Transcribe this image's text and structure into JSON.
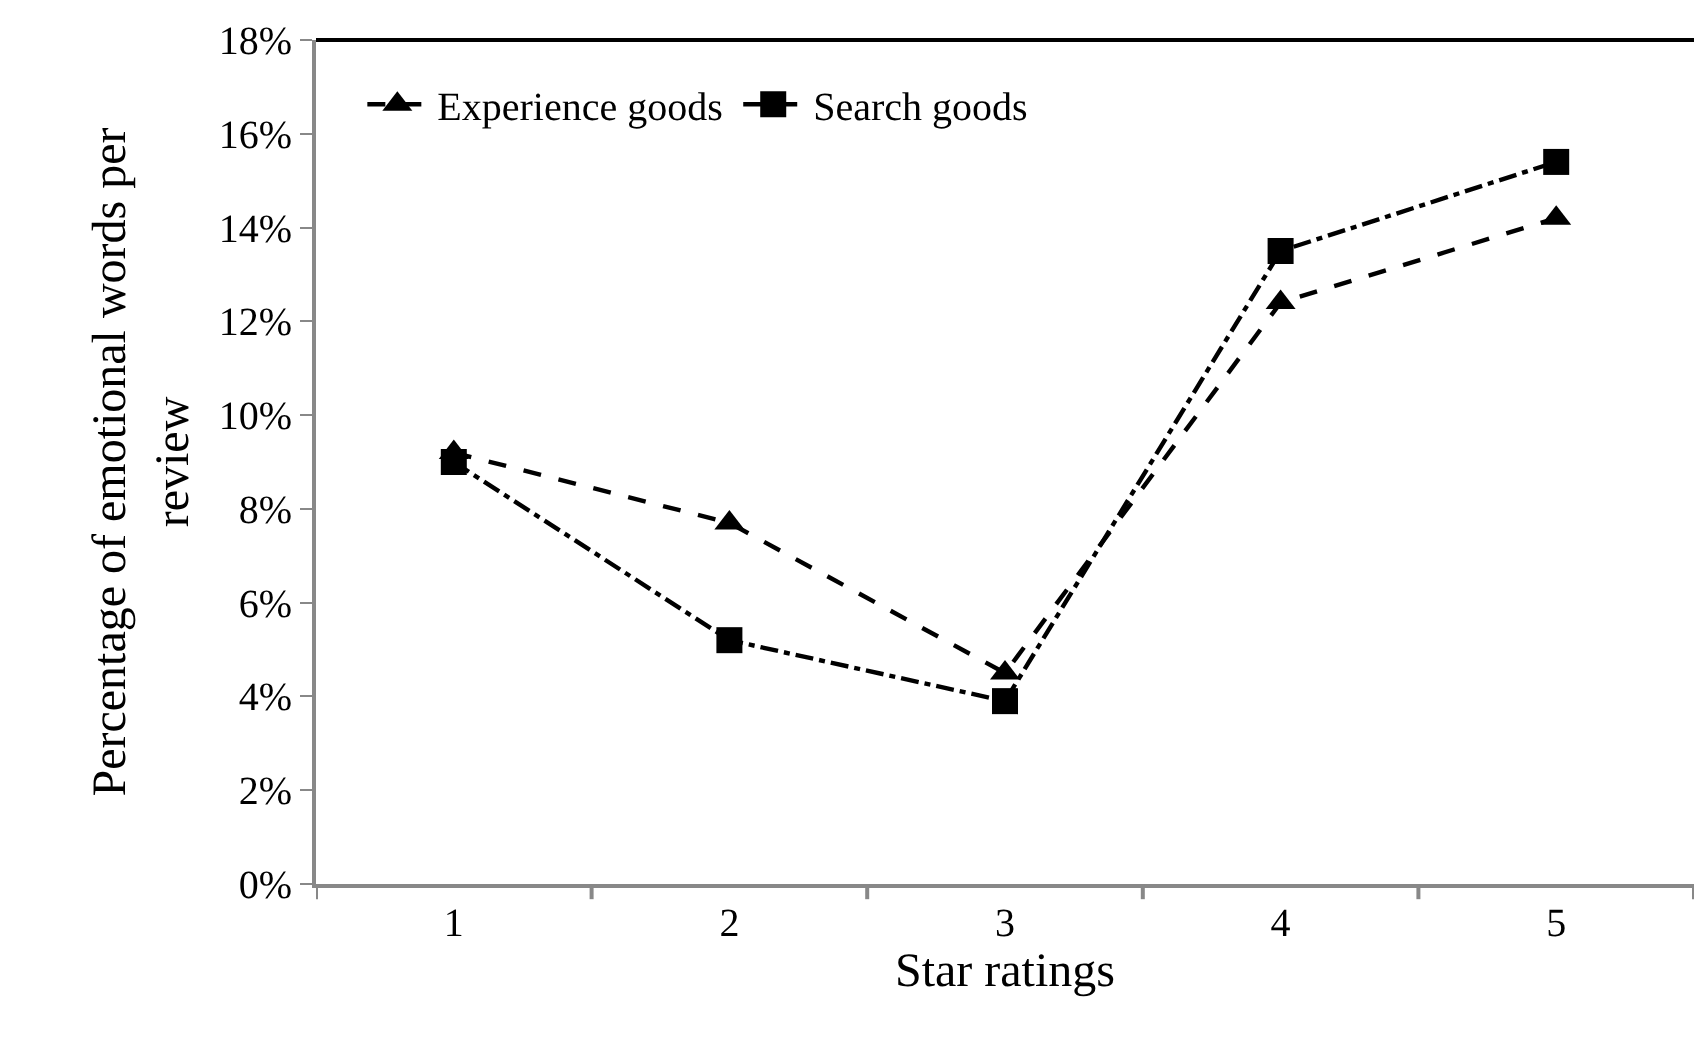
{
  "chart_data": {
    "type": "line",
    "xlabel": "Star ratings",
    "ylabel": "Percentage of emotional words per review",
    "categories": [
      "1",
      "2",
      "3",
      "4",
      "5"
    ],
    "series": [
      {
        "name": "Experience goods",
        "color": "#000000",
        "marker": "triangle",
        "line_style": "dashed",
        "values": [
          9.2,
          7.7,
          4.5,
          12.4,
          14.2
        ]
      },
      {
        "name": "Search goods",
        "color": "#000000",
        "marker": "square",
        "line_style": "dashdot",
        "values": [
          9.0,
          5.2,
          3.9,
          13.5,
          15.4
        ]
      }
    ],
    "ylim": [
      0,
      18
    ],
    "yticks": [
      {
        "value": 0,
        "label": "0%"
      },
      {
        "value": 2,
        "label": "2%"
      },
      {
        "value": 4,
        "label": "4%"
      },
      {
        "value": 6,
        "label": "6%"
      },
      {
        "value": 8,
        "label": "8%"
      },
      {
        "value": 10,
        "label": "10%"
      },
      {
        "value": 12,
        "label": "12%"
      },
      {
        "value": 14,
        "label": "14%"
      },
      {
        "value": 16,
        "label": "16%"
      },
      {
        "value": 18,
        "label": "18%"
      }
    ],
    "legend": "top left"
  }
}
